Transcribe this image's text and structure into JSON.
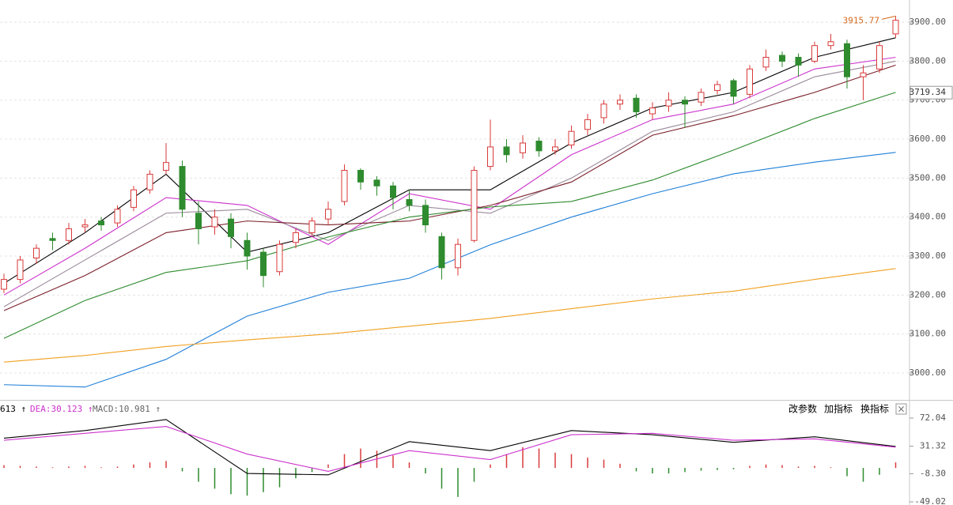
{
  "chart_data": [
    {
      "type": "candlestick",
      "up_color": "#d93a3a",
      "down_color": "#2e8b2e",
      "grid": true,
      "ylim": [
        2933,
        3957
      ],
      "yticks": [
        {
          "value": 3000,
          "label": "3000.00"
        },
        {
          "value": 3100,
          "label": "3100.00"
        },
        {
          "value": 3200,
          "label": "3200.00"
        },
        {
          "value": 3300,
          "label": "3300.00"
        },
        {
          "value": 3400,
          "label": "3400.00"
        },
        {
          "value": 3500,
          "label": "3500.00"
        },
        {
          "value": 3600,
          "label": "3600.00"
        },
        {
          "value": 3700,
          "label": "3700.00"
        },
        {
          "value": 3800,
          "label": "3800.00"
        },
        {
          "value": 3900,
          "label": "3900.00"
        }
      ],
      "last_price": 3719.34,
      "high_label": 3915.77,
      "high_color": "#d2691e",
      "ohlc": [
        [
          3215,
          3255,
          3205,
          3240
        ],
        [
          3240,
          3300,
          3230,
          3290
        ],
        [
          3295,
          3330,
          3280,
          3320
        ],
        [
          3345,
          3360,
          3315,
          3340
        ],
        [
          3340,
          3385,
          3330,
          3370
        ],
        [
          3375,
          3395,
          3360,
          3380
        ],
        [
          3390,
          3400,
          3365,
          3380
        ],
        [
          3385,
          3430,
          3375,
          3420
        ],
        [
          3425,
          3480,
          3415,
          3470
        ],
        [
          3470,
          3520,
          3460,
          3510
        ],
        [
          3520,
          3590,
          3510,
          3540
        ],
        [
          3530,
          3545,
          3400,
          3420
        ],
        [
          3410,
          3440,
          3330,
          3370
        ],
        [
          3375,
          3420,
          3355,
          3400
        ],
        [
          3395,
          3410,
          3320,
          3350
        ],
        [
          3340,
          3360,
          3265,
          3300
        ],
        [
          3310,
          3320,
          3220,
          3250
        ],
        [
          3260,
          3340,
          3250,
          3330
        ],
        [
          3335,
          3370,
          3320,
          3360
        ],
        [
          3360,
          3400,
          3350,
          3390
        ],
        [
          3395,
          3440,
          3380,
          3420
        ],
        [
          3440,
          3535,
          3430,
          3520
        ],
        [
          3520,
          3525,
          3470,
          3490
        ],
        [
          3495,
          3505,
          3455,
          3480
        ],
        [
          3480,
          3490,
          3420,
          3450
        ],
        [
          3445,
          3470,
          3415,
          3430
        ],
        [
          3430,
          3445,
          3360,
          3380
        ],
        [
          3350,
          3360,
          3240,
          3270
        ],
        [
          3270,
          3345,
          3250,
          3330
        ],
        [
          3340,
          3530,
          3335,
          3520
        ],
        [
          3530,
          3650,
          3520,
          3580
        ],
        [
          3580,
          3600,
          3540,
          3560
        ],
        [
          3565,
          3610,
          3550,
          3590
        ],
        [
          3595,
          3605,
          3555,
          3570
        ],
        [
          3570,
          3600,
          3560,
          3580
        ],
        [
          3585,
          3635,
          3575,
          3620
        ],
        [
          3625,
          3665,
          3610,
          3650
        ],
        [
          3655,
          3700,
          3640,
          3690
        ],
        [
          3690,
          3715,
          3675,
          3700
        ],
        [
          3705,
          3715,
          3655,
          3670
        ],
        [
          3665,
          3695,
          3650,
          3680
        ],
        [
          3685,
          3720,
          3670,
          3700
        ],
        [
          3700,
          3710,
          3630,
          3690
        ],
        [
          3695,
          3730,
          3685,
          3720
        ],
        [
          3725,
          3750,
          3715,
          3740
        ],
        [
          3750,
          3755,
          3690,
          3710
        ],
        [
          3715,
          3790,
          3705,
          3780
        ],
        [
          3785,
          3830,
          3775,
          3810
        ],
        [
          3815,
          3825,
          3785,
          3800
        ],
        [
          3810,
          3820,
          3760,
          3790
        ],
        [
          3800,
          3850,
          3795,
          3840
        ],
        [
          3840,
          3870,
          3830,
          3850
        ],
        [
          3845,
          3855,
          3730,
          3760
        ],
        [
          3760,
          3790,
          3700,
          3770
        ],
        [
          3780,
          3850,
          3770,
          3840
        ],
        [
          3870,
          3915.77,
          3860,
          3905
        ]
      ],
      "line_x": [
        0,
        5,
        10,
        15,
        20,
        25,
        30,
        35,
        40,
        45,
        50,
        55
      ],
      "lines": [
        {
          "color": "#000000",
          "values": [
            3230,
            3360,
            3510,
            3310,
            3360,
            3470,
            3470,
            3590,
            3680,
            3720,
            3810,
            3860
          ]
        },
        {
          "color": "#cc33cc",
          "values": [
            3200,
            3320,
            3450,
            3430,
            3330,
            3460,
            3420,
            3560,
            3650,
            3690,
            3780,
            3810
          ]
        },
        {
          "color": "#9a8a9a",
          "values": [
            3170,
            3290,
            3410,
            3420,
            3340,
            3430,
            3410,
            3500,
            3620,
            3670,
            3760,
            3800
          ]
        },
        {
          "color": "#7a1f2a",
          "values": [
            3160,
            3250,
            3360,
            3390,
            3380,
            3390,
            3430,
            3490,
            3610,
            3660,
            3720,
            3790
          ]
        },
        {
          "color": "#2e8b2e",
          "values": [
            3089,
            3186,
            3258,
            3288,
            3349,
            3400,
            3426,
            3440,
            3495,
            3572,
            3653,
            3720
          ]
        },
        {
          "color": "#1e7fd8",
          "values": [
            2970,
            2964,
            3035,
            3146,
            3207,
            3243,
            3329,
            3400,
            3460,
            3511,
            3541,
            3566
          ]
        },
        {
          "color": "#f0a020",
          "values": [
            3028,
            3045,
            3068,
            3085,
            3100,
            3120,
            3140,
            3165,
            3190,
            3210,
            3240,
            3268
          ]
        }
      ]
    },
    {
      "type": "macd",
      "up_color": "#d93a3a",
      "down_color": "#2e8b2e",
      "grid": false,
      "ylim": [
        -53.6,
        97.2
      ],
      "yticks": [
        72.04,
        31.32,
        {
          "value": -8.3,
          "label": "-8.30"
        },
        -49.02
      ],
      "legend": [
        {
          "text": "613 ↑",
          "color": "#000000"
        },
        {
          "text": "DEA:30.123 ↑",
          "color": "#cc33cc"
        },
        {
          "text": "MACD:10.981 ↑",
          "color": "#666666"
        }
      ],
      "line_x": [
        0,
        5,
        10,
        15,
        20,
        25,
        30,
        35,
        40,
        45,
        50,
        55
      ],
      "lines": [
        {
          "color": "#000000",
          "values": [
            43,
            54,
            70,
            -8,
            -10,
            38,
            25,
            54,
            48,
            37,
            45,
            31
          ]
        },
        {
          "color": "#cc33cc",
          "values": [
            40,
            50,
            60,
            20,
            -5,
            25,
            12,
            48,
            50,
            40,
            42,
            30
          ]
        }
      ],
      "histogram": [
        4,
        3,
        2,
        1,
        2,
        3,
        1,
        2,
        5,
        8,
        10,
        -5,
        -20,
        -30,
        -38,
        -40,
        -35,
        -28,
        -15,
        -6,
        5,
        20,
        28,
        25,
        18,
        8,
        -8,
        -30,
        -42,
        -20,
        5,
        20,
        30,
        28,
        22,
        20,
        15,
        12,
        6,
        -5,
        -8,
        -8,
        -6,
        -4,
        -3,
        -2,
        3,
        5,
        4,
        2,
        3,
        1,
        -12,
        -20,
        -10,
        8
      ]
    }
  ],
  "toolbar": [
    "改参数",
    "加指标",
    "换指标",
    "×"
  ]
}
